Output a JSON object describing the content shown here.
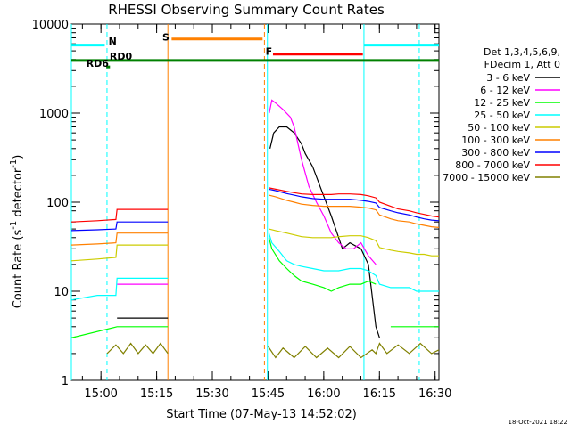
{
  "chart_data": {
    "type": "line",
    "title": "RHESSI Observing Summary Count Rates",
    "xlabel": "Start Time (07-May-13 14:52:02)",
    "ylabel_main": "Count Rate (s",
    "ylabel_sup1": "-1",
    "ylabel_mid": " detector",
    "ylabel_sup2": "-1",
    "ylabel_end": ")",
    "x_unit": "minutes since 14:52:02",
    "xlim": [
      0,
      99
    ],
    "ylim": [
      1,
      10000
    ],
    "y_scale": "log",
    "x_ticks": [
      {
        "label": "15:00",
        "x": 7.97
      },
      {
        "label": "15:15",
        "x": 22.97
      },
      {
        "label": "15:30",
        "x": 37.97
      },
      {
        "label": "15:45",
        "x": 52.97
      },
      {
        "label": "16:00",
        "x": 67.97
      },
      {
        "label": "16:15",
        "x": 82.97
      },
      {
        "label": "16:30",
        "x": 97.97
      }
    ],
    "y_ticks": [
      {
        "label": "1",
        "v": 1
      },
      {
        "label": "10",
        "v": 10
      },
      {
        "label": "100",
        "v": 100
      },
      {
        "label": "1000",
        "v": 1000
      },
      {
        "label": "10000",
        "v": 10000
      }
    ],
    "legend_header": [
      "Det 1,3,4,5,6,9,",
      "FDecim 1, Att 0"
    ],
    "series": [
      {
        "name": "3 - 6 keV",
        "color": "#000000",
        "x": [
          0,
          9.6,
          12.3,
          26,
          52.8,
          53.5,
          54.5,
          56,
          58,
          60,
          62,
          63,
          65,
          67,
          70,
          72,
          73,
          75,
          78,
          80,
          82,
          83
        ],
        "y": [
          null,
          null,
          5,
          5,
          null,
          400,
          600,
          700,
          700,
          600,
          450,
          350,
          250,
          150,
          70,
          40,
          30,
          35,
          30,
          20,
          4,
          3
        ]
      },
      {
        "name": "6 - 12 keV",
        "color": "#ff00ff",
        "x": [
          0,
          12.3,
          26,
          52.8,
          53.3,
          54,
          55,
          57,
          59,
          60,
          62,
          64,
          66,
          68,
          70,
          72,
          74,
          76,
          78,
          80,
          82
        ],
        "y": [
          null,
          12,
          12,
          null,
          1000,
          1400,
          1300,
          1100,
          900,
          700,
          300,
          150,
          100,
          70,
          45,
          35,
          30,
          30,
          35,
          25,
          20
        ]
      },
      {
        "name": "12 - 25 keV",
        "color": "#00ff00",
        "x": [
          0,
          12.3,
          26,
          52.8,
          53.2,
          54,
          56,
          58,
          60,
          62,
          65,
          68,
          70,
          72,
          75,
          78,
          80,
          82,
          83,
          86,
          88,
          91,
          93,
          95,
          97,
          99
        ],
        "y": [
          3,
          4,
          4,
          null,
          40,
          30,
          22,
          18,
          15,
          13,
          12,
          11,
          10,
          11,
          12,
          12,
          13,
          12,
          null,
          4,
          4,
          4,
          4,
          4,
          4,
          4
        ]
      },
      {
        "name": "25 - 50 keV",
        "color": "#00ffff",
        "x": [
          0,
          7,
          12,
          12.3,
          26,
          52.8,
          53.2,
          54,
          56,
          58,
          60,
          62,
          65,
          68,
          70,
          72,
          75,
          78,
          80,
          82,
          83,
          86,
          88,
          91,
          93,
          95,
          97,
          99
        ],
        "y": [
          8,
          9,
          9,
          14,
          14,
          null,
          45,
          35,
          28,
          22,
          20,
          19,
          18,
          17,
          17,
          17,
          18,
          18,
          17,
          15,
          12,
          11,
          11,
          11,
          10,
          10,
          10,
          10
        ]
      },
      {
        "name": "50 - 100 keV",
        "color": "#cccc00",
        "x": [
          0,
          7,
          12,
          12.3,
          26,
          52.8,
          53.2,
          55,
          58,
          60,
          62,
          65,
          68,
          70,
          72,
          75,
          78,
          80,
          82,
          83,
          86,
          88,
          91,
          93,
          95,
          97,
          99
        ],
        "y": [
          22,
          23,
          24,
          33,
          33,
          null,
          50,
          48,
          45,
          43,
          41,
          40,
          40,
          40,
          41,
          42,
          42,
          40,
          37,
          31,
          29,
          28,
          27,
          26,
          26,
          25,
          25
        ]
      },
      {
        "name": "100 - 300 keV",
        "color": "#ff8000",
        "x": [
          0,
          7,
          12,
          12.3,
          26,
          52.8,
          53.2,
          55,
          58,
          60,
          62,
          65,
          68,
          70,
          72,
          75,
          78,
          80,
          82,
          83,
          86,
          88,
          91,
          93,
          95,
          97,
          99
        ],
        "y": [
          33,
          34,
          35,
          45,
          45,
          null,
          120,
          115,
          105,
          100,
          95,
          92,
          90,
          90,
          90,
          90,
          88,
          86,
          82,
          72,
          65,
          62,
          60,
          57,
          55,
          53,
          52
        ]
      },
      {
        "name": "300 - 800 keV",
        "color": "#0000ff",
        "x": [
          0,
          7,
          12,
          12.3,
          26,
          52.8,
          53.2,
          55,
          58,
          60,
          62,
          65,
          68,
          70,
          72,
          75,
          78,
          80,
          82,
          83,
          86,
          88,
          91,
          93,
          95,
          97,
          99
        ],
        "y": [
          48,
          49,
          50,
          60,
          60,
          null,
          140,
          135,
          125,
          120,
          115,
          110,
          108,
          108,
          108,
          108,
          105,
          102,
          98,
          87,
          80,
          76,
          72,
          68,
          65,
          63,
          62
        ]
      },
      {
        "name": "800 - 7000 keV",
        "color": "#ff0000",
        "x": [
          0,
          7,
          12,
          12.3,
          26,
          52.8,
          53.2,
          55,
          58,
          60,
          62,
          65,
          68,
          70,
          72,
          75,
          78,
          80,
          82,
          83,
          86,
          88,
          91,
          93,
          95,
          97,
          99
        ],
        "y": [
          60,
          62,
          64,
          83,
          83,
          null,
          145,
          140,
          132,
          128,
          124,
          122,
          122,
          122,
          124,
          124,
          122,
          118,
          112,
          100,
          90,
          84,
          80,
          76,
          73,
          70,
          68
        ]
      },
      {
        "name": "7000 - 15000 keV",
        "color": "#808000",
        "x": [
          0,
          9.6,
          12,
          14,
          16,
          18,
          20,
          22,
          24,
          26,
          52.8,
          53,
          55,
          57,
          60,
          63,
          66,
          69,
          72,
          75,
          78,
          81,
          82,
          83,
          85,
          88,
          91,
          94,
          97,
          99
        ],
        "y": [
          null,
          2,
          2.5,
          2,
          2.6,
          2,
          2.5,
          2,
          2.6,
          2,
          null,
          2.4,
          1.8,
          2.3,
          1.8,
          2.4,
          1.8,
          2.3,
          1.8,
          2.4,
          1.8,
          2.2,
          2,
          2.6,
          2,
          2.5,
          2,
          2.6,
          2,
          2.2
        ]
      }
    ],
    "gaps": [
      [
        26,
        52.8
      ]
    ],
    "vlines": [
      {
        "x": 0,
        "color": "#00ffff",
        "dash": false
      },
      {
        "x": 9.6,
        "color": "#00ffff",
        "dash": true
      },
      {
        "x": 26,
        "color": "#ff8000",
        "dash": false
      },
      {
        "x": 52.0,
        "color": "#ff8000",
        "dash": true
      },
      {
        "x": 52.8,
        "color": "#00ffff",
        "dash": false
      },
      {
        "x": 78.8,
        "color": "#00ffff",
        "dash": false
      },
      {
        "x": 93.7,
        "color": "#00ffff",
        "dash": true
      }
    ],
    "annotations": [
      {
        "text": "N",
        "x": 10,
        "y": 5900,
        "color": "#00ffff"
      },
      {
        "text": "S",
        "x": 24.5,
        "y": 6500,
        "color": "#ff8000"
      },
      {
        "text": "F",
        "x": 52.3,
        "y": 4500,
        "color": "#ff0000"
      },
      {
        "text": "RD6",
        "x": 4,
        "y": 3300,
        "color": "#008000"
      },
      {
        "text": "RD0",
        "x": 10.3,
        "y": 4000,
        "color": "#008000"
      }
    ],
    "flag_bars": [
      {
        "x0": 0,
        "x1": 9,
        "y": 5800,
        "color": "#00ffff"
      },
      {
        "x0": 78.8,
        "x1": 99,
        "y": 5800,
        "color": "#00ffff"
      },
      {
        "x0": 27,
        "x1": 51.5,
        "y": 6800,
        "color": "#ff8000"
      },
      {
        "x0": 54.3,
        "x1": 78.5,
        "y": 4600,
        "color": "#ff0000"
      },
      {
        "x0": 0,
        "x1": 99,
        "y": 3900,
        "color": "#008000"
      },
      {
        "x0": 9.4,
        "x1": 10.4,
        "y": 3300,
        "color": "#008000"
      }
    ],
    "footer_stamp": "18-Oct-2021 18:22"
  }
}
